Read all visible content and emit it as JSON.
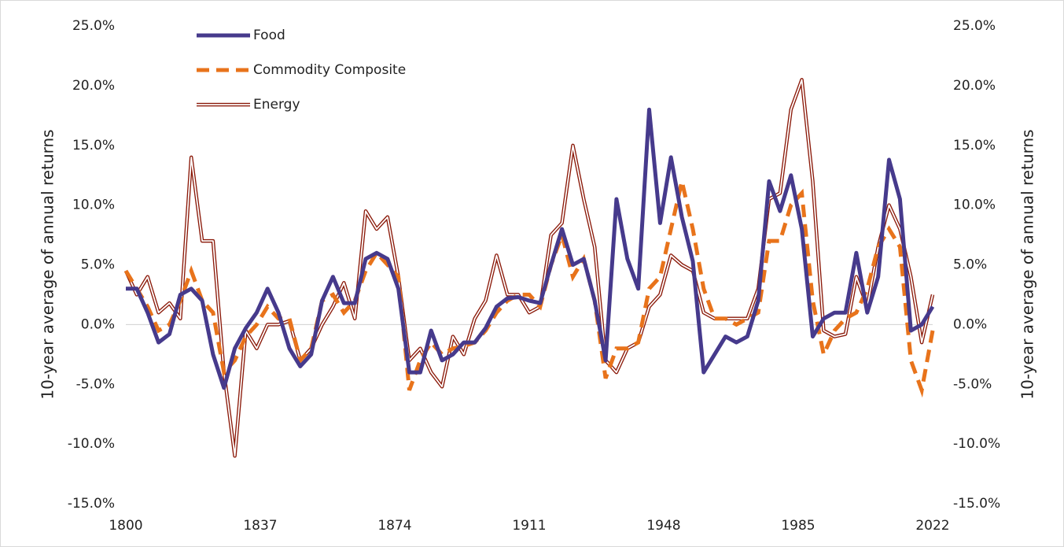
{
  "chart_data": {
    "type": "line",
    "ylabel": "10-year average of annual returns",
    "y2label": "10-year average of annual returns",
    "x": [
      1800,
      1803,
      1806,
      1809,
      1812,
      1815,
      1818,
      1821,
      1824,
      1827,
      1830,
      1833,
      1836,
      1839,
      1842,
      1845,
      1848,
      1851,
      1854,
      1857,
      1860,
      1863,
      1866,
      1869,
      1872,
      1875,
      1878,
      1881,
      1884,
      1887,
      1890,
      1893,
      1896,
      1899,
      1902,
      1905,
      1908,
      1911,
      1914,
      1917,
      1920,
      1923,
      1926,
      1929,
      1932,
      1935,
      1938,
      1941,
      1944,
      1947,
      1950,
      1953,
      1956,
      1959,
      1962,
      1965,
      1968,
      1971,
      1974,
      1977,
      1980,
      1983,
      1986,
      1989,
      1992,
      1995,
      1998,
      2001,
      2004,
      2007,
      2010,
      2013,
      2016,
      2019,
      2022
    ],
    "xlim": [
      1800,
      2022
    ],
    "xticks": [
      1800,
      1837,
      1874,
      1911,
      1948,
      1985,
      2022
    ],
    "ylim": [
      -15,
      25
    ],
    "yticks": [
      {
        "value": -15,
        "label": "-15.0%"
      },
      {
        "value": -10,
        "label": "-10.0%"
      },
      {
        "value": -5,
        "label": "-5.0%"
      },
      {
        "value": 0,
        "label": "0.0%"
      },
      {
        "value": 5,
        "label": "5.0%"
      },
      {
        "value": 10,
        "label": "10.0%"
      },
      {
        "value": 15,
        "label": "15.0%"
      },
      {
        "value": 20,
        "label": "20.0%"
      },
      {
        "value": 25,
        "label": "25.0%"
      }
    ],
    "y2lim": [
      -15,
      25
    ],
    "y2ticks": [
      {
        "value": -15,
        "label": "-15.0%"
      },
      {
        "value": -10,
        "label": "-10.0%"
      },
      {
        "value": -5,
        "label": "-5.0%"
      },
      {
        "value": 0,
        "label": "0.0%"
      },
      {
        "value": 5,
        "label": "5.0%"
      },
      {
        "value": 10,
        "label": "10.0%"
      },
      {
        "value": 15,
        "label": "15.0%"
      },
      {
        "value": 20,
        "label": "20.0%"
      },
      {
        "value": 25,
        "label": "25.0%"
      }
    ],
    "series": [
      {
        "name": "Food",
        "color": "#463a8c",
        "linestyle": "solid",
        "values": [
          3,
          3,
          1,
          -1.5,
          -0.8,
          2.5,
          3,
          2,
          -2.5,
          -5.3,
          -2,
          -0.3,
          1,
          3,
          1,
          -2,
          -3.5,
          -2.5,
          2,
          4,
          1.8,
          1.8,
          5.5,
          6,
          5.5,
          3,
          -4,
          -4,
          -0.5,
          -3,
          -2.5,
          -1.5,
          -1.5,
          -0.3,
          1.5,
          2.2,
          2.3,
          2,
          1.8,
          5,
          8,
          5,
          5.5,
          2,
          -3,
          10.5,
          5.5,
          3,
          18,
          8.5,
          14,
          9,
          5.3,
          -4,
          -2.5,
          -1,
          -1.5,
          -1,
          2,
          12,
          9.5,
          12.5,
          8,
          -1,
          0.5,
          1,
          1,
          6,
          1,
          4,
          13.8,
          10.5,
          -0.5,
          0,
          1.5
        ]
      },
      {
        "name": "Commodity Composite",
        "color": "#e8731b",
        "linestyle": "dashed",
        "values": [
          4.5,
          3,
          1.5,
          -0.5,
          0,
          2,
          4.5,
          2,
          1,
          -4,
          -3,
          -1,
          0,
          1.5,
          0.5,
          0.5,
          -3,
          -2,
          2,
          2.5,
          1,
          2,
          4.5,
          6,
          5,
          4,
          -5.5,
          -3,
          -1.5,
          -2.5,
          -2,
          -1.8,
          -1.5,
          -0.5,
          1,
          2,
          2.5,
          2.5,
          1.5,
          5,
          7.5,
          4,
          5.5,
          2,
          -4.5,
          -2,
          -2,
          -1.5,
          3,
          4,
          8,
          12,
          8,
          3,
          0.5,
          0.5,
          0,
          0.5,
          1,
          7,
          7,
          10,
          11,
          2,
          -2.5,
          -0.5,
          0.5,
          1,
          3,
          6.5,
          8,
          6.5,
          -3,
          -5.5,
          -0.5
        ]
      },
      {
        "name": "Energy",
        "color": "#8b1a0a",
        "linestyle": "double",
        "values": [
          4.5,
          2.5,
          4,
          1,
          1.8,
          0.5,
          14,
          7,
          7,
          -4,
          -11,
          -0.5,
          -2,
          0,
          0,
          0.3,
          -3,
          -2,
          0,
          1.5,
          3.5,
          0.5,
          9.5,
          8,
          9,
          4,
          -3,
          -2,
          -4,
          -5.2,
          -1,
          -2.5,
          0.5,
          2,
          5.8,
          2.5,
          2.5,
          1,
          1.5,
          7.5,
          8.5,
          15,
          10.5,
          6.5,
          -3,
          -4,
          -2,
          -1.5,
          1.5,
          2.5,
          5.8,
          5,
          4.5,
          1,
          0.5,
          0.5,
          0.5,
          0.5,
          3,
          10.5,
          11,
          18,
          20.5,
          12,
          -0.5,
          -1,
          -0.8,
          4,
          1.5,
          6.5,
          10,
          8,
          4,
          -1.5,
          2.5
        ]
      }
    ]
  }
}
